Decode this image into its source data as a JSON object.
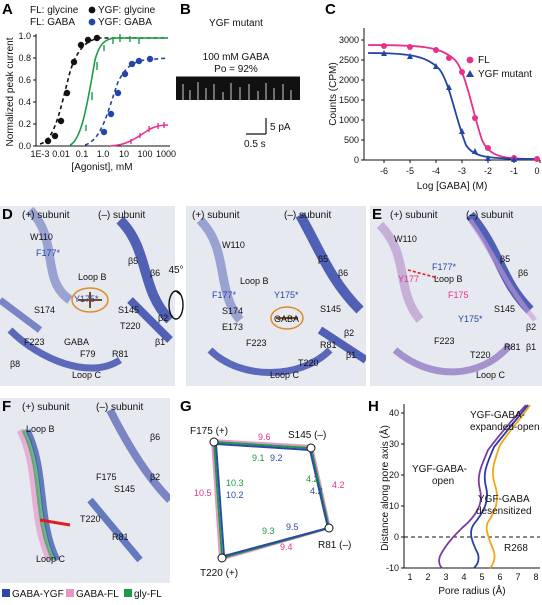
{
  "colors": {
    "glycine_FL": "#111111",
    "GABA_FL": "#e8318a",
    "glycine_YGF": "#1a9c48",
    "GABA_YGF": "#2345a8",
    "gaba_ygf_swatch": "#2b4aa8",
    "gaba_fl_swatch": "#e795c6",
    "gly_fl_swatch": "#1c9a48",
    "open": "#2b3da6",
    "desensitized": "#7b3ca6",
    "expanded_open": "#f5a614"
  },
  "panels": {
    "A": {
      "letter": "A",
      "legend": {
        "fl_glycine": "FL: glycine",
        "ygf_glycine": "YGF: glycine",
        "fl_gaba": "FL: GABA",
        "ygf_gaba": "YGF: GABA"
      },
      "ylabel": "Normalized peak current",
      "xlabel": "[Agonist], mM",
      "yticks": [
        "0.0",
        "0.2",
        "0.4",
        "0.6",
        "0.8",
        "1.0"
      ],
      "xticks": [
        "1E-3",
        "0.01",
        "0.1",
        "1.0",
        "10",
        "100",
        "1000"
      ]
    },
    "B": {
      "letter": "B",
      "title": "YGF mutant",
      "condition": "100 mM GABA",
      "po": "Po = 92%",
      "scale_current": "5 pA",
      "scale_time": "0.5 s"
    },
    "C": {
      "letter": "C",
      "ylabel": "Counts (CPM)",
      "xlabel": "Log [GABA] (M)",
      "yticks": [
        "0",
        "500",
        "1000",
        "1500",
        "2000",
        "2500",
        "3000"
      ],
      "xticks": [
        "-6",
        "-5",
        "-4",
        "-3",
        "-2",
        "-1",
        "0"
      ],
      "legend": {
        "fl": "FL",
        "ygf": "YGF mutant"
      }
    },
    "D": {
      "letter": "D",
      "plus_subunit": "(+) subunit",
      "minus_subunit": "(–) subunit",
      "rotation": "45°",
      "left_labels": {
        "w110": "W110",
        "f177": "F177*",
        "b5": "β5",
        "b6": "β6",
        "loopb": "Loop B",
        "y175": "Y175*",
        "s145": "S145",
        "s174": "S174",
        "b2": "β2",
        "t220": "T220",
        "f223": "F223",
        "gaba": "GABA",
        "b1": "β1",
        "b8": "β8",
        "f79": "F79",
        "r81": "R81",
        "loopc": "Loop C"
      },
      "right_labels": {
        "w110": "W110",
        "b5": "β5",
        "b6": "β6",
        "loopb": "Loop B",
        "f177": "F177*",
        "y175": "Y175*",
        "s145": "S145",
        "s174": "S174",
        "gaba": "GABA",
        "e173": "E173",
        "b2": "β2",
        "f223": "F223",
        "r81": "R81",
        "b1": "β1",
        "t220": "T220",
        "loopc": "Loop C"
      }
    },
    "E": {
      "letter": "E",
      "plus_subunit": "(+) subunit",
      "minus_subunit": "(–) subunit",
      "labels": {
        "w110": "W110",
        "f177": "F177*",
        "b5": "β5",
        "b6": "β6",
        "y177": "Y177",
        "loopb": "Loop B",
        "f175": "F175",
        "s145": "S145",
        "y175": "Y175*",
        "b2": "β2",
        "f223": "F223",
        "t220": "T220",
        "r81": "R81",
        "b1": "β1",
        "loopc": "Loop C"
      }
    },
    "F": {
      "letter": "F",
      "plus_subunit": "(+) subunit",
      "minus_subunit": "(–) subunit",
      "labels": {
        "loopb": "Loop B",
        "b6": "β6",
        "f175": "F175",
        "s145": "S145",
        "b2": "β2",
        "t220": "T220",
        "r81": "R81",
        "loopc": "Loop C"
      },
      "legend": {
        "gaba_ygf": "GABA-YGF",
        "gaba_fl": "GABA-FL",
        "gly_fl": "gly-FL"
      }
    },
    "G": {
      "letter": "G",
      "vertices": {
        "f175": "F175 (+)",
        "s145": "S145 (–)",
        "r81": "R81 (–)",
        "t220": "T220 (+)"
      },
      "distances": {
        "top": [
          "9.6",
          "9.1",
          "9.2"
        ],
        "left": [
          "10.5",
          "10.3",
          "10.2"
        ],
        "right": [
          "4.2",
          "4.2",
          "4.2"
        ],
        "diag": [
          "9.3",
          "9.5"
        ],
        "bottom": [
          "9.4"
        ]
      }
    },
    "H": {
      "letter": "H",
      "ylabel": "Distance along pore axis (Å)",
      "xlabel": "Pore radius (Å)",
      "yticks": [
        "-10",
        "0",
        "10",
        "20",
        "30",
        "40"
      ],
      "xticks": [
        "1",
        "2",
        "3",
        "4",
        "5",
        "6",
        "7",
        "8"
      ],
      "labels": {
        "expanded_a": "YGF-GABA-",
        "expanded_b": "expanded-open",
        "open_a": "YGF-GABA-",
        "open_b": "open",
        "desens_a": "YGF-GABA",
        "desens_b": "desensitized",
        "r268": "R268"
      }
    }
  }
}
